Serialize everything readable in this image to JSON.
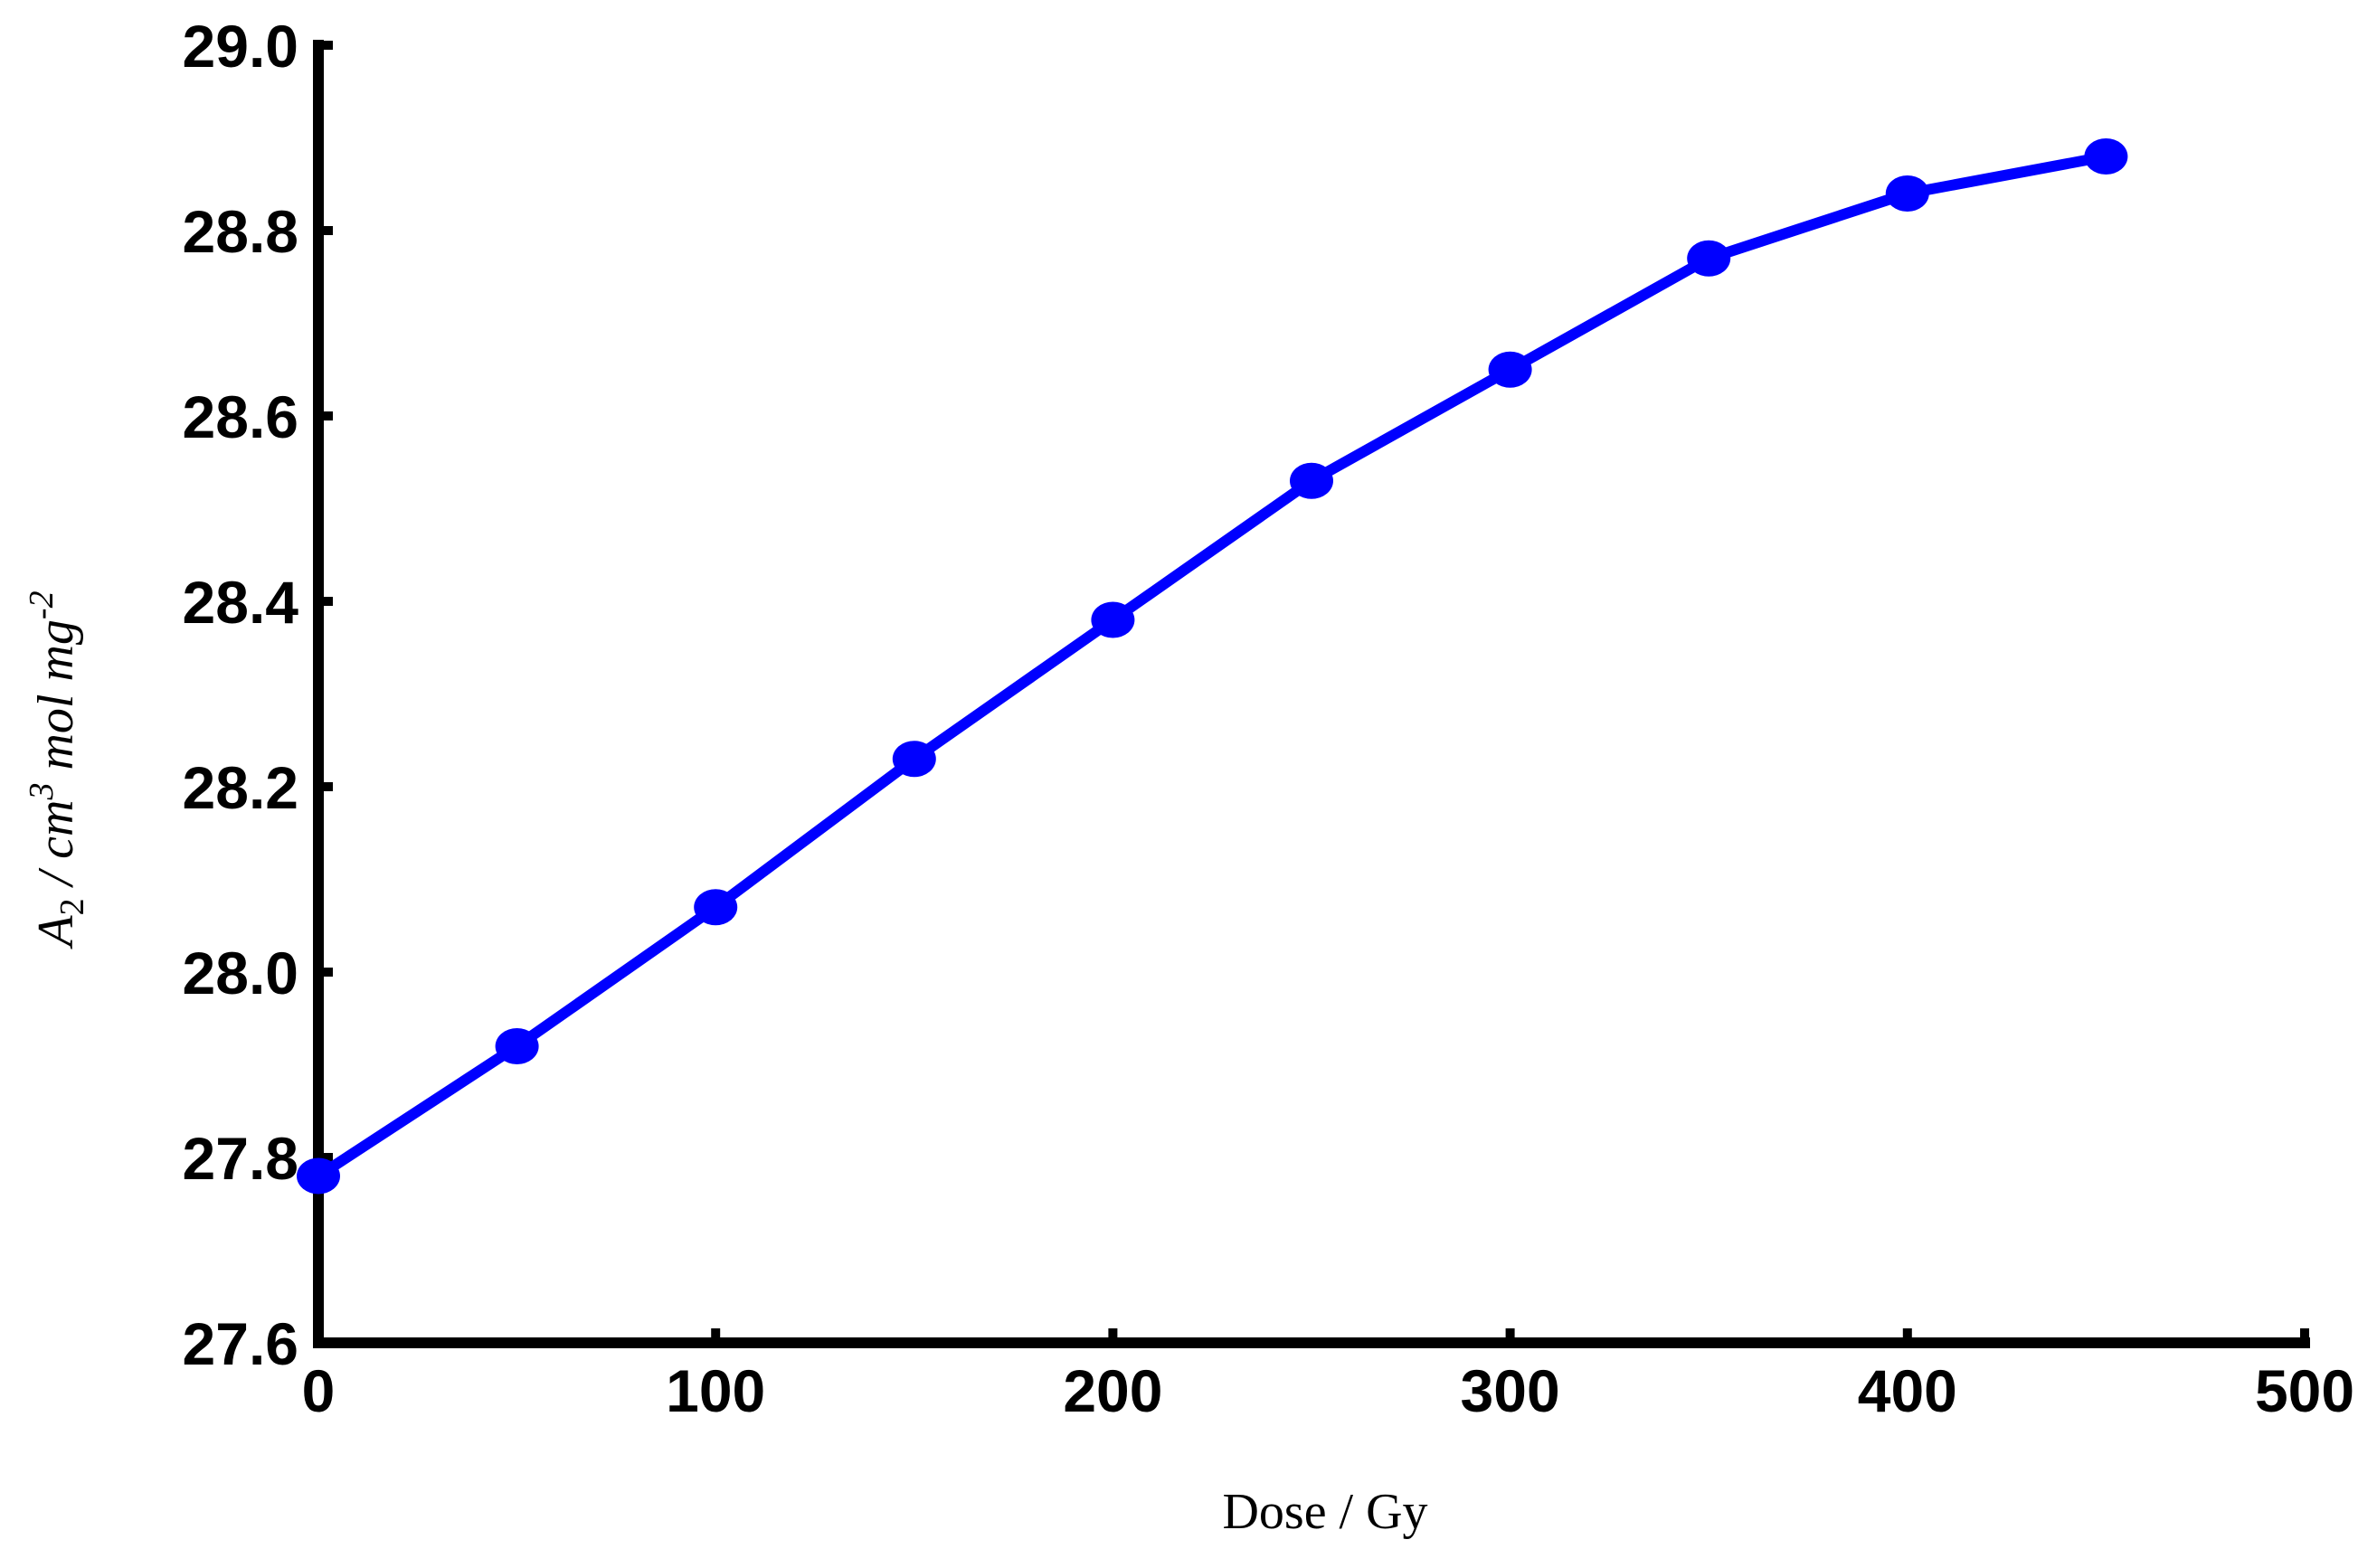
{
  "chart_data": {
    "type": "line",
    "xlabel": "Dose / Gy",
    "ylabel": [
      "A",
      "2",
      " / cm",
      "3",
      " mol mg",
      "-2"
    ],
    "x": [
      0,
      50,
      100,
      150,
      200,
      250,
      300,
      350,
      400,
      450
    ],
    "series": [
      {
        "color": "#0000ff",
        "values": [
          27.78,
          27.92,
          28.07,
          28.23,
          28.38,
          28.53,
          28.65,
          28.77,
          28.84,
          28.88
        ]
      }
    ],
    "xlim": [
      0,
      500
    ],
    "xticks": [
      0,
      100,
      200,
      300,
      400,
      500
    ],
    "ylim": [
      27.6,
      29.0
    ],
    "yticks": [
      27.6,
      27.8,
      {
        "value": 28,
        "label": "28.0"
      },
      28.2,
      28.4,
      28.6,
      28.8,
      {
        "value": 29,
        "label": "29.0"
      }
    ],
    "markers": true
  }
}
